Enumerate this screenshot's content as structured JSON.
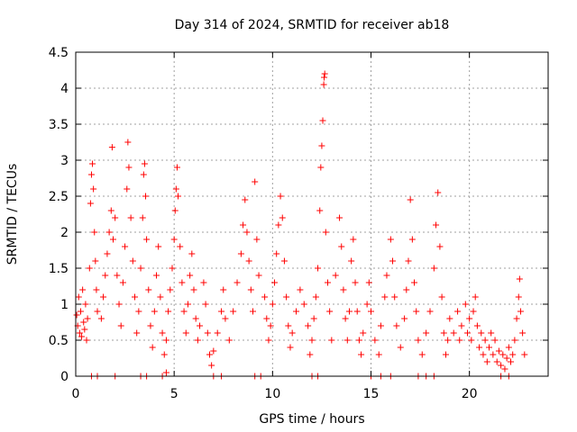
{
  "chart_data": {
    "type": "scatter",
    "title": "Day 314 of 2024, SRMTID for receiver ab18",
    "xlabel": "GPS time / hours",
    "ylabel": "SRMTID / TECUs",
    "xlim": [
      0,
      24
    ],
    "ylim": [
      0,
      4.5
    ],
    "xticks": [
      0,
      5,
      10,
      15,
      20
    ],
    "yticks": [
      0,
      0.5,
      1,
      1.5,
      2,
      2.5,
      3,
      3.5,
      4,
      4.5
    ],
    "xtick_labels": [
      "0",
      "5",
      "10",
      "15",
      "20"
    ],
    "ytick_labels": [
      "0",
      "0.5",
      "1",
      "1.5",
      "2",
      "2.5",
      "3",
      "3.5",
      "4",
      "4.5"
    ],
    "grid": true,
    "marker": "+",
    "color": "#ff0000",
    "series": [
      {
        "name": "SRMTID",
        "points": [
          [
            0.05,
            0.85
          ],
          [
            0.1,
            0.7
          ],
          [
            0.15,
            1.1
          ],
          [
            0.2,
            0.6
          ],
          [
            0.25,
            0.9
          ],
          [
            0.3,
            0.55
          ],
          [
            0.35,
            1.2
          ],
          [
            0.4,
            0.75
          ],
          [
            0.45,
            0.65
          ],
          [
            0.5,
            1.0
          ],
          [
            0.55,
            0.5
          ],
          [
            0.6,
            0.8
          ],
          [
            0.7,
            1.5
          ],
          [
            0.75,
            2.4
          ],
          [
            0.8,
            2.8
          ],
          [
            0.85,
            2.95
          ],
          [
            0.9,
            2.6
          ],
          [
            0.95,
            2.0
          ],
          [
            1.0,
            1.6
          ],
          [
            1.05,
            1.2
          ],
          [
            1.1,
            0.9
          ],
          [
            0.8,
            0.0
          ],
          [
            1.1,
            0.0
          ],
          [
            1.3,
            0.8
          ],
          [
            1.4,
            1.1
          ],
          [
            1.5,
            1.4
          ],
          [
            1.6,
            1.7
          ],
          [
            1.7,
            2.0
          ],
          [
            1.8,
            2.3
          ],
          [
            1.9,
            1.9
          ],
          [
            2.0,
            2.2
          ],
          [
            1.85,
            3.18
          ],
          [
            2.1,
            1.4
          ],
          [
            2.2,
            1.0
          ],
          [
            2.3,
            0.7
          ],
          [
            2.0,
            0.0
          ],
          [
            2.4,
            1.3
          ],
          [
            2.5,
            1.8
          ],
          [
            2.6,
            2.6
          ],
          [
            2.65,
            3.25
          ],
          [
            2.7,
            2.9
          ],
          [
            2.8,
            2.2
          ],
          [
            2.9,
            1.6
          ],
          [
            3.0,
            1.1
          ],
          [
            3.1,
            0.6
          ],
          [
            3.2,
            0.9
          ],
          [
            3.3,
            1.5
          ],
          [
            3.4,
            2.2
          ],
          [
            3.45,
            2.8
          ],
          [
            3.5,
            2.95
          ],
          [
            3.55,
            2.5
          ],
          [
            3.6,
            1.9
          ],
          [
            3.7,
            1.2
          ],
          [
            3.8,
            0.7
          ],
          [
            3.9,
            0.4
          ],
          [
            4.0,
            0.9
          ],
          [
            4.1,
            1.4
          ],
          [
            4.2,
            1.8
          ],
          [
            3.3,
            0.0
          ],
          [
            3.6,
            0.0
          ],
          [
            4.3,
            1.1
          ],
          [
            4.4,
            0.6
          ],
          [
            4.5,
            0.3
          ],
          [
            4.6,
            0.5
          ],
          [
            4.7,
            0.9
          ],
          [
            4.8,
            1.2
          ],
          [
            4.9,
            1.5
          ],
          [
            5.0,
            1.9
          ],
          [
            5.05,
            2.3
          ],
          [
            5.1,
            2.6
          ],
          [
            5.15,
            2.9
          ],
          [
            5.2,
            2.5
          ],
          [
            5.3,
            1.8
          ],
          [
            5.4,
            1.3
          ],
          [
            5.5,
            0.9
          ],
          [
            5.6,
            0.6
          ],
          [
            5.7,
            1.0
          ],
          [
            5.8,
            1.4
          ],
          [
            5.9,
            1.7
          ],
          [
            6.0,
            1.2
          ],
          [
            6.1,
            0.8
          ],
          [
            6.2,
            0.5
          ],
          [
            6.3,
            0.7
          ],
          [
            4.4,
            0.0
          ],
          [
            4.6,
            0.05
          ],
          [
            6.5,
            1.3
          ],
          [
            6.6,
            1.0
          ],
          [
            6.7,
            0.6
          ],
          [
            6.8,
            0.3
          ],
          [
            6.9,
            0.15
          ],
          [
            7.0,
            0.35
          ],
          [
            7.2,
            0.6
          ],
          [
            7.4,
            0.9
          ],
          [
            7.5,
            1.2
          ],
          [
            7.6,
            0.8
          ],
          [
            7.8,
            0.5
          ],
          [
            8.0,
            0.9
          ],
          [
            8.2,
            1.3
          ],
          [
            8.4,
            1.7
          ],
          [
            8.5,
            2.1
          ],
          [
            8.6,
            2.45
          ],
          [
            8.7,
            2.0
          ],
          [
            8.8,
            1.6
          ],
          [
            8.9,
            1.2
          ],
          [
            9.0,
            0.9
          ],
          [
            9.1,
            2.7
          ],
          [
            9.2,
            1.9
          ],
          [
            9.3,
            1.4
          ],
          [
            7.0,
            0.0
          ],
          [
            7.4,
            0.0
          ],
          [
            9.1,
            0.0
          ],
          [
            9.4,
            0.0
          ],
          [
            9.6,
            1.1
          ],
          [
            9.7,
            0.8
          ],
          [
            9.8,
            0.5
          ],
          [
            9.9,
            0.7
          ],
          [
            10.0,
            1.0
          ],
          [
            10.1,
            1.3
          ],
          [
            10.2,
            1.7
          ],
          [
            10.3,
            2.1
          ],
          [
            10.4,
            2.5
          ],
          [
            10.5,
            2.2
          ],
          [
            10.6,
            1.6
          ],
          [
            10.7,
            1.1
          ],
          [
            10.8,
            0.7
          ],
          [
            10.9,
            0.4
          ],
          [
            11.0,
            0.6
          ],
          [
            11.2,
            0.9
          ],
          [
            11.4,
            1.2
          ],
          [
            11.6,
            1.0
          ],
          [
            11.8,
            0.7
          ],
          [
            11.9,
            0.3
          ],
          [
            12.0,
            0.5
          ],
          [
            12.1,
            0.8
          ],
          [
            12.2,
            1.1
          ],
          [
            12.3,
            1.5
          ],
          [
            12.4,
            2.3
          ],
          [
            12.45,
            2.9
          ],
          [
            12.5,
            3.2
          ],
          [
            12.55,
            3.55
          ],
          [
            12.6,
            4.05
          ],
          [
            12.62,
            4.15
          ],
          [
            12.65,
            4.2
          ],
          [
            12.7,
            2.0
          ],
          [
            12.8,
            1.3
          ],
          [
            12.9,
            0.9
          ],
          [
            13.0,
            0.5
          ],
          [
            12.0,
            0.0
          ],
          [
            12.3,
            0.0
          ],
          [
            13.2,
            1.4
          ],
          [
            13.4,
            2.2
          ],
          [
            13.5,
            1.8
          ],
          [
            13.6,
            1.2
          ],
          [
            13.7,
            0.8
          ],
          [
            13.8,
            0.5
          ],
          [
            13.9,
            0.9
          ],
          [
            14.0,
            1.6
          ],
          [
            14.1,
            1.9
          ],
          [
            14.2,
            1.3
          ],
          [
            14.3,
            0.9
          ],
          [
            14.4,
            0.5
          ],
          [
            14.5,
            0.3
          ],
          [
            14.6,
            0.6
          ],
          [
            14.8,
            1.0
          ],
          [
            14.9,
            1.3
          ],
          [
            15.0,
            0.9
          ],
          [
            15.2,
            0.5
          ],
          [
            15.4,
            0.3
          ],
          [
            15.5,
            0.7
          ],
          [
            15.7,
            1.1
          ],
          [
            15.8,
            1.4
          ],
          [
            16.0,
            1.9
          ],
          [
            16.1,
            1.6
          ],
          [
            16.2,
            1.1
          ],
          [
            16.3,
            0.7
          ],
          [
            16.5,
            0.4
          ],
          [
            15.0,
            0.0
          ],
          [
            15.5,
            0.0
          ],
          [
            16.0,
            0.0
          ],
          [
            16.7,
            0.8
          ],
          [
            16.8,
            1.2
          ],
          [
            16.9,
            1.6
          ],
          [
            17.0,
            2.45
          ],
          [
            17.1,
            1.9
          ],
          [
            17.2,
            1.3
          ],
          [
            17.3,
            0.9
          ],
          [
            17.4,
            0.5
          ],
          [
            17.6,
            0.3
          ],
          [
            17.8,
            0.6
          ],
          [
            18.0,
            0.9
          ],
          [
            18.2,
            1.5
          ],
          [
            18.3,
            2.1
          ],
          [
            18.4,
            2.55
          ],
          [
            18.5,
            1.8
          ],
          [
            18.6,
            1.1
          ],
          [
            18.7,
            0.6
          ],
          [
            18.8,
            0.3
          ],
          [
            18.9,
            0.5
          ],
          [
            17.4,
            0.0
          ],
          [
            17.8,
            0.0
          ],
          [
            18.2,
            0.0
          ],
          [
            19.0,
            0.8
          ],
          [
            19.2,
            0.6
          ],
          [
            19.4,
            0.9
          ],
          [
            19.5,
            0.5
          ],
          [
            19.6,
            0.7
          ],
          [
            19.8,
            1.0
          ],
          [
            19.9,
            0.6
          ],
          [
            20.0,
            0.8
          ],
          [
            20.1,
            0.5
          ],
          [
            20.2,
            0.9
          ],
          [
            20.3,
            1.1
          ],
          [
            20.4,
            0.7
          ],
          [
            20.5,
            0.4
          ],
          [
            20.6,
            0.6
          ],
          [
            20.7,
            0.3
          ],
          [
            20.8,
            0.5
          ],
          [
            20.9,
            0.2
          ],
          [
            21.0,
            0.4
          ],
          [
            21.1,
            0.6
          ],
          [
            21.2,
            0.3
          ],
          [
            21.3,
            0.5
          ],
          [
            21.4,
            0.2
          ],
          [
            21.5,
            0.35
          ],
          [
            21.6,
            0.15
          ],
          [
            21.7,
            0.3
          ],
          [
            21.8,
            0.1
          ],
          [
            21.9,
            0.25
          ],
          [
            22.0,
            0.4
          ],
          [
            22.1,
            0.2
          ],
          [
            22.2,
            0.3
          ],
          [
            22.3,
            0.5
          ],
          [
            22.4,
            0.8
          ],
          [
            22.5,
            1.1
          ],
          [
            22.55,
            1.35
          ],
          [
            22.6,
            0.9
          ],
          [
            22.7,
            0.6
          ],
          [
            22.8,
            0.3
          ],
          [
            21.6,
            0.0
          ],
          [
            22.0,
            0.0
          ]
        ]
      }
    ]
  }
}
